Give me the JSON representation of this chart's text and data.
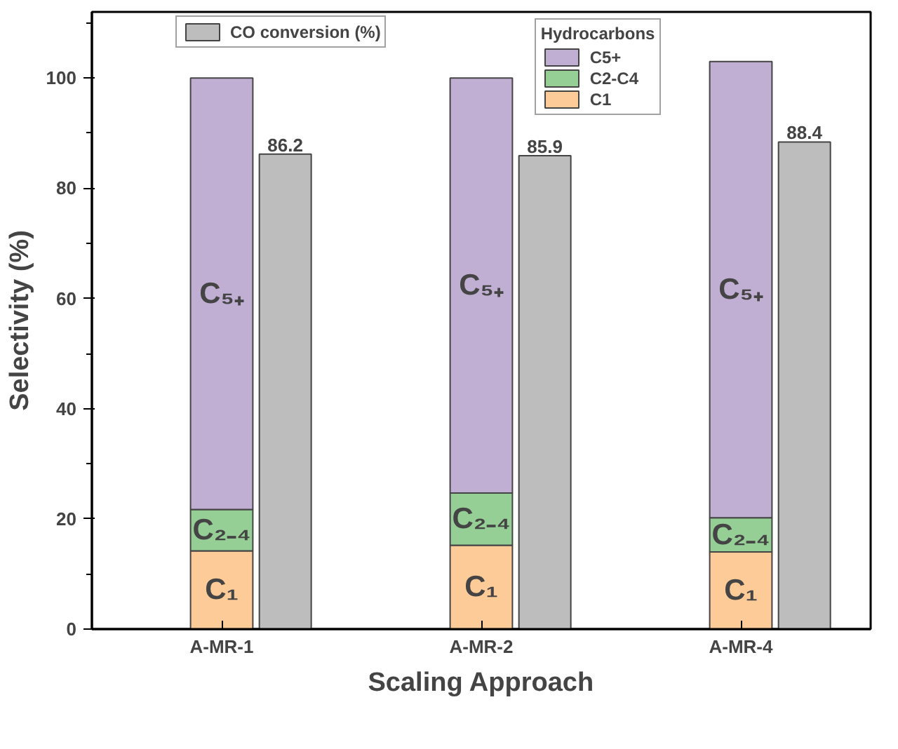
{
  "chart_data": {
    "type": "bar",
    "xlabel": "Scaling Approach",
    "ylabel": "Selectivity (%)",
    "categories": [
      "A-MR-1",
      "A-MR-2",
      "A-MR-4"
    ],
    "ylim": [
      0,
      112
    ],
    "yticks": [
      0,
      20,
      40,
      60,
      80,
      100
    ],
    "legend_title": "Hydrocarbons",
    "legend": "top",
    "grid": false,
    "series": [
      {
        "name": "C1",
        "color": "#fdcb98",
        "base": [
          0,
          0,
          0
        ],
        "values": [
          14.2,
          15.2,
          14.0
        ]
      },
      {
        "name": "C2-C4",
        "color": "#96cf96",
        "base": [
          14.2,
          15.2,
          14.0
        ],
        "values": [
          7.5,
          9.5,
          6.2
        ]
      },
      {
        "name": "C5+",
        "color": "#c0aed3",
        "base": [
          21.7,
          24.7,
          20.2
        ],
        "values": [
          78.3,
          75.3,
          82.8
        ]
      },
      {
        "name": "CO conversion (%)",
        "color": "#bdbdbd",
        "values": [
          86.2,
          85.9,
          88.4
        ],
        "value_labels": [
          "86.2",
          "85.9",
          "88.4"
        ]
      }
    ],
    "annotations": [
      "C₁",
      "C₂₋₄",
      "C₅₊",
      "C₁",
      "C₂₋₄",
      "C₅₊",
      "C₁",
      "C₂₋₄",
      "C₅₊"
    ]
  }
}
